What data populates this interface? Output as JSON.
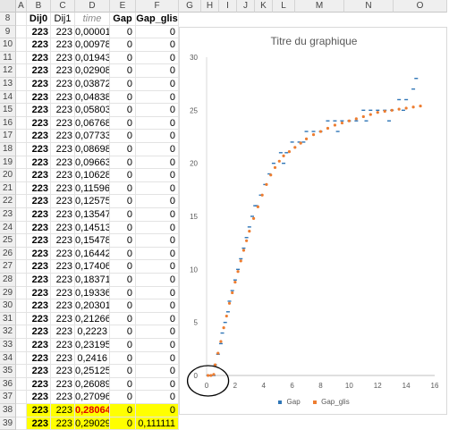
{
  "columns": [
    "A",
    "B",
    "C",
    "D",
    "E",
    "F",
    "G",
    "H",
    "I",
    "J",
    "K",
    "L",
    "M",
    "N",
    "O"
  ],
  "header_row": {
    "row": "8",
    "B": "Dij0",
    "C": "Dij1",
    "D": "time",
    "E": "Gap",
    "F": "Gap_glis"
  },
  "rows": [
    {
      "row": "9",
      "B": "223",
      "C": "223",
      "D": "0,00001",
      "E": "0",
      "F": "0"
    },
    {
      "row": "10",
      "B": "223",
      "C": "223",
      "D": "0,00978",
      "E": "0",
      "F": "0"
    },
    {
      "row": "11",
      "B": "223",
      "C": "223",
      "D": "0,01943",
      "E": "0",
      "F": "0"
    },
    {
      "row": "12",
      "B": "223",
      "C": "223",
      "D": "0,02908",
      "E": "0",
      "F": "0"
    },
    {
      "row": "13",
      "B": "223",
      "C": "223",
      "D": "0,03872",
      "E": "0",
      "F": "0"
    },
    {
      "row": "14",
      "B": "223",
      "C": "223",
      "D": "0,04838",
      "E": "0",
      "F": "0"
    },
    {
      "row": "15",
      "B": "223",
      "C": "223",
      "D": "0,05803",
      "E": "0",
      "F": "0"
    },
    {
      "row": "16",
      "B": "223",
      "C": "223",
      "D": "0,06768",
      "E": "0",
      "F": "0"
    },
    {
      "row": "17",
      "B": "223",
      "C": "223",
      "D": "0,07733",
      "E": "0",
      "F": "0"
    },
    {
      "row": "18",
      "B": "223",
      "C": "223",
      "D": "0,08698",
      "E": "0",
      "F": "0"
    },
    {
      "row": "19",
      "B": "223",
      "C": "223",
      "D": "0,09663",
      "E": "0",
      "F": "0"
    },
    {
      "row": "20",
      "B": "223",
      "C": "223",
      "D": "0,10628",
      "E": "0",
      "F": "0"
    },
    {
      "row": "21",
      "B": "223",
      "C": "223",
      "D": "0,11596",
      "E": "0",
      "F": "0"
    },
    {
      "row": "22",
      "B": "223",
      "C": "223",
      "D": "0,12575",
      "E": "0",
      "F": "0"
    },
    {
      "row": "23",
      "B": "223",
      "C": "223",
      "D": "0,13547",
      "E": "0",
      "F": "0"
    },
    {
      "row": "24",
      "B": "223",
      "C": "223",
      "D": "0,14513",
      "E": "0",
      "F": "0"
    },
    {
      "row": "25",
      "B": "223",
      "C": "223",
      "D": "0,15478",
      "E": "0",
      "F": "0"
    },
    {
      "row": "26",
      "B": "223",
      "C": "223",
      "D": "0,16442",
      "E": "0",
      "F": "0"
    },
    {
      "row": "27",
      "B": "223",
      "C": "223",
      "D": "0,17406",
      "E": "0",
      "F": "0"
    },
    {
      "row": "28",
      "B": "223",
      "C": "223",
      "D": "0,18371",
      "E": "0",
      "F": "0"
    },
    {
      "row": "29",
      "B": "223",
      "C": "223",
      "D": "0,19336",
      "E": "0",
      "F": "0"
    },
    {
      "row": "30",
      "B": "223",
      "C": "223",
      "D": "0,20301",
      "E": "0",
      "F": "0"
    },
    {
      "row": "31",
      "B": "223",
      "C": "223",
      "D": "0,21266",
      "E": "0",
      "F": "0"
    },
    {
      "row": "32",
      "B": "223",
      "C": "223",
      "D": "0,2223",
      "E": "0",
      "F": "0"
    },
    {
      "row": "33",
      "B": "223",
      "C": "223",
      "D": "0,23195",
      "E": "0",
      "F": "0"
    },
    {
      "row": "34",
      "B": "223",
      "C": "223",
      "D": "0,2416",
      "E": "0",
      "F": "0"
    },
    {
      "row": "35",
      "B": "223",
      "C": "223",
      "D": "0,25125",
      "E": "0",
      "F": "0"
    },
    {
      "row": "36",
      "B": "223",
      "C": "223",
      "D": "0,26089",
      "E": "0",
      "F": "0"
    },
    {
      "row": "37",
      "B": "223",
      "C": "223",
      "D": "0,27096",
      "E": "0",
      "F": "0"
    },
    {
      "row": "38",
      "B": "223",
      "C": "223",
      "D": "0,28064",
      "E": "0",
      "F": "0",
      "highlight": true,
      "time_red": true
    },
    {
      "row": "39",
      "B": "223",
      "C": "223",
      "D": "0,29029",
      "E": "0",
      "F": "0,111111",
      "highlight": true
    }
  ],
  "colors": {
    "gap": "#2e75b6",
    "gap_glis": "#ed7d31",
    "highlight": "#ffff00",
    "time_red": "#e00000"
  },
  "chart_data": {
    "type": "scatter",
    "title": "Titre du graphique",
    "xlim": [
      0,
      16
    ],
    "ylim": [
      0,
      30
    ],
    "x_ticks": [
      "0",
      "2",
      "4",
      "6",
      "8",
      "10",
      "12",
      "14",
      "16"
    ],
    "y_ticks": [
      "0",
      "5",
      "10",
      "15",
      "20",
      "25",
      "30"
    ],
    "legend_placement": "bottom",
    "series": [
      {
        "name": "Gap",
        "points": [
          [
            0.1,
            0
          ],
          [
            0.3,
            0
          ],
          [
            0.5,
            0
          ],
          [
            0.6,
            1
          ],
          [
            0.8,
            2
          ],
          [
            1,
            3
          ],
          [
            1.1,
            4
          ],
          [
            1.3,
            5
          ],
          [
            1.5,
            6
          ],
          [
            1.6,
            7
          ],
          [
            1.8,
            8
          ],
          [
            2,
            9
          ],
          [
            2.2,
            10
          ],
          [
            2.4,
            11
          ],
          [
            2.6,
            12
          ],
          [
            2.8,
            13
          ],
          [
            3,
            14
          ],
          [
            3.2,
            15
          ],
          [
            3.5,
            16
          ],
          [
            3.8,
            17
          ],
          [
            4.1,
            18
          ],
          [
            4.4,
            19
          ],
          [
            4.7,
            20
          ],
          [
            5.2,
            21
          ],
          [
            5.6,
            21
          ],
          [
            6,
            22
          ],
          [
            6.5,
            22
          ],
          [
            7,
            23
          ],
          [
            7.5,
            23
          ],
          [
            8,
            23
          ],
          [
            8.5,
            24
          ],
          [
            9,
            24
          ],
          [
            9.5,
            24
          ],
          [
            10,
            24
          ],
          [
            10.5,
            24
          ],
          [
            11,
            25
          ],
          [
            11.5,
            25
          ],
          [
            12,
            25
          ],
          [
            12.5,
            25
          ],
          [
            13,
            25
          ],
          [
            13.5,
            26
          ],
          [
            14,
            26
          ],
          [
            14.5,
            27
          ],
          [
            14.7,
            28
          ],
          [
            3.4,
            16
          ],
          [
            5.4,
            20
          ],
          [
            6.8,
            22
          ],
          [
            9.2,
            23
          ],
          [
            11.2,
            24
          ],
          [
            12.8,
            24
          ],
          [
            13.8,
            25
          ]
        ]
      },
      {
        "name": "Gap_glis",
        "points": [
          [
            0.1,
            0
          ],
          [
            0.3,
            0
          ],
          [
            0.5,
            0.1
          ],
          [
            0.6,
            1
          ],
          [
            0.8,
            2.1
          ],
          [
            1,
            3.2
          ],
          [
            1.2,
            4.5
          ],
          [
            1.4,
            5.6
          ],
          [
            1.6,
            6.8
          ],
          [
            1.8,
            7.8
          ],
          [
            2,
            8.8
          ],
          [
            2.2,
            9.8
          ],
          [
            2.4,
            10.8
          ],
          [
            2.6,
            11.8
          ],
          [
            2.8,
            12.7
          ],
          [
            3,
            13.6
          ],
          [
            3.3,
            14.8
          ],
          [
            3.6,
            15.9
          ],
          [
            3.9,
            17
          ],
          [
            4.2,
            18
          ],
          [
            4.5,
            18.9
          ],
          [
            4.8,
            19.6
          ],
          [
            5.1,
            20.2
          ],
          [
            5.4,
            20.7
          ],
          [
            5.8,
            21.1
          ],
          [
            6.2,
            21.5
          ],
          [
            6.6,
            21.9
          ],
          [
            7,
            22.3
          ],
          [
            7.5,
            22.7
          ],
          [
            8,
            23
          ],
          [
            8.5,
            23.3
          ],
          [
            9,
            23.6
          ],
          [
            9.5,
            23.8
          ],
          [
            10,
            24
          ],
          [
            10.5,
            24.2
          ],
          [
            11,
            24.4
          ],
          [
            11.5,
            24.6
          ],
          [
            12,
            24.8
          ],
          [
            12.5,
            24.9
          ],
          [
            13,
            25
          ],
          [
            13.5,
            25.1
          ],
          [
            14,
            25.2
          ],
          [
            14.5,
            25.3
          ],
          [
            15,
            25.4
          ]
        ]
      }
    ]
  }
}
